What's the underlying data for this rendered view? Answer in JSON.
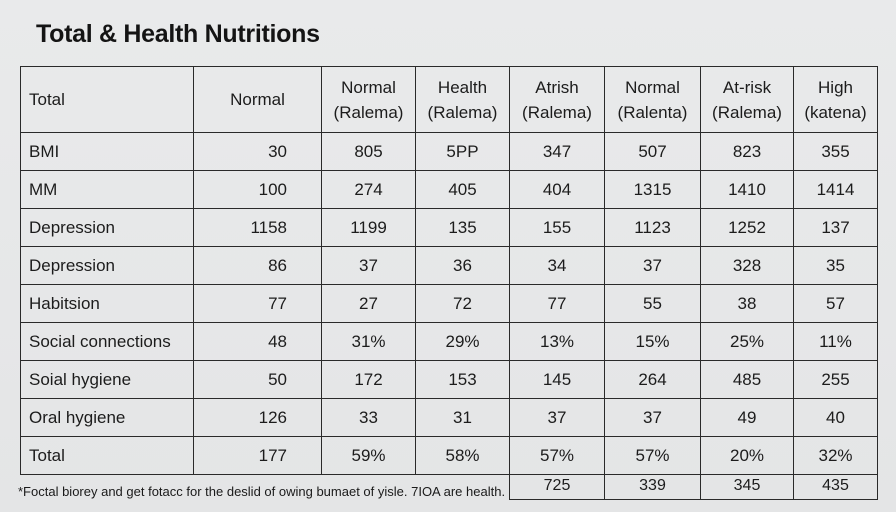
{
  "title": "Total & Health Nutritions",
  "columns": [
    {
      "line1": "Total",
      "line2": ""
    },
    {
      "line1": "Normal",
      "line2": ""
    },
    {
      "line1": "Normal",
      "line2": "(Ralema)"
    },
    {
      "line1": "Health",
      "line2": "(Ralema)"
    },
    {
      "line1": "Atrish",
      "line2": "(Ralema)"
    },
    {
      "line1": "Normal",
      "line2": "(Ralenta)"
    },
    {
      "line1": "At-risk",
      "line2": "(Ralema)"
    },
    {
      "line1": "High",
      "line2": "(katena)"
    }
  ],
  "rows": [
    {
      "label": "BMI",
      "values": [
        "30",
        "805",
        "5PP",
        "347",
        "507",
        "823",
        "355"
      ]
    },
    {
      "label": "MM",
      "values": [
        "100",
        "274",
        "405",
        "404",
        "1315",
        "1410",
        "1414"
      ]
    },
    {
      "label": "Depression",
      "values": [
        "1158",
        "1199",
        "135",
        "155",
        "1123",
        "1252",
        "137"
      ]
    },
    {
      "label": "Depression",
      "values": [
        "86",
        "37",
        "36",
        "34",
        "37",
        "328",
        "35"
      ]
    },
    {
      "label": "Habitsion",
      "values": [
        "77",
        "27",
        "72",
        "77",
        "55",
        "38",
        "57"
      ]
    },
    {
      "label": "Social connections",
      "values": [
        "48",
        "31%",
        "29%",
        "13%",
        "15%",
        "25%",
        "11%"
      ]
    },
    {
      "label": "Soial hygiene",
      "values": [
        "50",
        "172",
        "153",
        "145",
        "264",
        "485",
        "255"
      ]
    },
    {
      "label": "Oral hygiene",
      "values": [
        "126",
        "33",
        "31",
        "37",
        "37",
        "49",
        "40"
      ]
    },
    {
      "label": "Total",
      "values": [
        "177",
        "59%",
        "58%",
        "57%",
        "57%",
        "20%",
        "32%"
      ]
    }
  ],
  "extra_row": [
    "725",
    "339",
    "345",
    "435"
  ],
  "footnote": "*Foctal biorey and get fotacc for the deslid of owing bumaet of yisle. 7IOA are health."
}
